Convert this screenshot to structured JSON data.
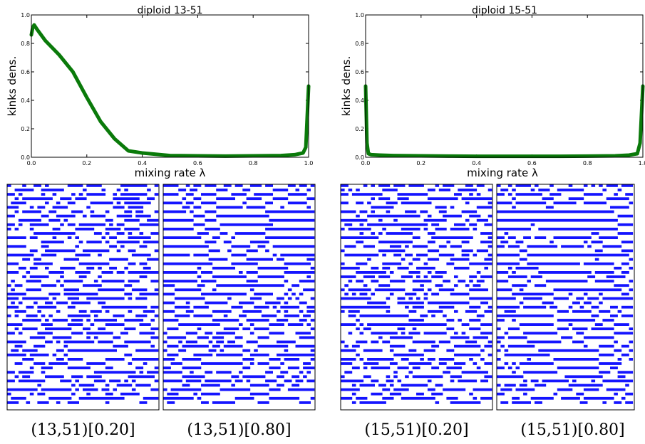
{
  "chart_data": [
    {
      "type": "line",
      "title": "diploid 13-51",
      "xlabel": "mixing rate λ",
      "ylabel": "kinks dens.",
      "xlim": [
        0,
        1
      ],
      "ylim": [
        0,
        1
      ],
      "xticks": [
        "0.0",
        "0.2",
        "0.4",
        "0.6",
        "0.8",
        "1.0"
      ],
      "yticks": [
        "0.0",
        "0.2",
        "0.4",
        "0.6",
        "0.8",
        "1.0"
      ],
      "grid": false,
      "color": "#0a7a0a",
      "x": [
        0,
        0.005,
        0.01,
        0.02,
        0.05,
        0.1,
        0.15,
        0.2,
        0.25,
        0.3,
        0.35,
        0.4,
        0.5,
        0.6,
        0.7,
        0.8,
        0.9,
        0.95,
        0.98,
        0.99,
        1.0
      ],
      "y": [
        0.86,
        0.91,
        0.93,
        0.9,
        0.82,
        0.72,
        0.6,
        0.42,
        0.25,
        0.13,
        0.045,
        0.03,
        0.012,
        0.01,
        0.008,
        0.01,
        0.012,
        0.018,
        0.03,
        0.07,
        0.5
      ]
    },
    {
      "type": "line",
      "title": "diploid 15-51",
      "xlabel": "mixing rate λ",
      "ylabel": "kinks dens.",
      "xlim": [
        0,
        1
      ],
      "ylim": [
        0,
        1
      ],
      "xticks": [
        "0.0",
        "0.2",
        "0.4",
        "0.6",
        "0.8",
        "1.0"
      ],
      "yticks": [
        "0.0",
        "0.2",
        "0.4",
        "0.6",
        "0.8",
        "1.0"
      ],
      "grid": false,
      "color": "#0a7a0a",
      "x": [
        0,
        0.005,
        0.01,
        0.02,
        0.05,
        0.1,
        0.2,
        0.3,
        0.4,
        0.5,
        0.6,
        0.7,
        0.8,
        0.9,
        0.95,
        0.98,
        0.99,
        1.0
      ],
      "y": [
        0.5,
        0.1,
        0.025,
        0.018,
        0.015,
        0.012,
        0.01,
        0.008,
        0.007,
        0.007,
        0.007,
        0.007,
        0.008,
        0.01,
        0.015,
        0.025,
        0.1,
        0.5
      ]
    }
  ],
  "patterns": {
    "colors": {
      "on": "#1414ff",
      "off": "#ffffff",
      "frame": "#000000"
    },
    "captions": [
      "(13,51)[0.20]",
      "(13,51)[0.80]",
      "(15,51)[0.20]",
      "(15,51)[0.80]"
    ],
    "mixing_rates": [
      0.2,
      0.8,
      0.2,
      0.8
    ]
  }
}
